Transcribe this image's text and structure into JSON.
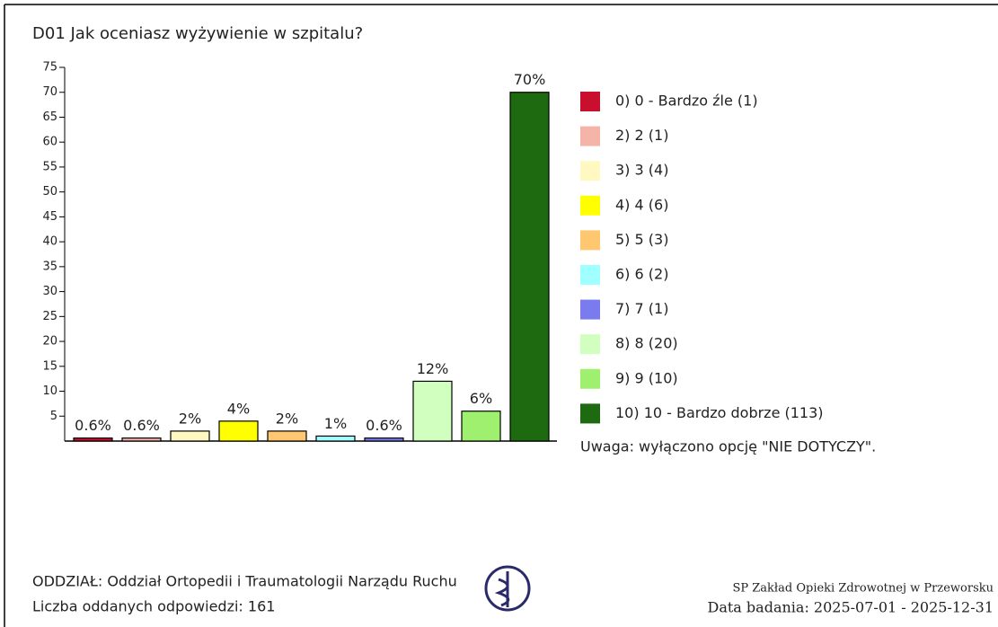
{
  "chart_data": {
    "type": "bar",
    "title": "D01 Jak oceniasz wyżywienie w szpitalu?",
    "categories": [
      "0) 0 - Bardzo źle (1)",
      "2) 2 (1)",
      "3) 3 (4)",
      "4) 4 (6)",
      "5) 5 (3)",
      "6) 6 (2)",
      "7) 7 (1)",
      "8) 8 (20)",
      "9) 9 (10)",
      "10) 10 - Bardzo dobrze (113)"
    ],
    "values": [
      0.6,
      0.6,
      2,
      4,
      2,
      1,
      0.6,
      12,
      6,
      70
    ],
    "value_labels": [
      "0.6%",
      "0.6%",
      "2%",
      "4%",
      "2%",
      "1%",
      "0.6%",
      "12%",
      "6%",
      "70%"
    ],
    "colors": [
      "#c8102e",
      "#f4b4a8",
      "#fff8c0",
      "#ffff00",
      "#ffc870",
      "#a0ffff",
      "#7b7bf0",
      "#d0ffc0",
      "#a0f070",
      "#1e6a10"
    ],
    "ylim": [
      0,
      75
    ],
    "yticks": [
      5,
      10,
      15,
      20,
      25,
      30,
      35,
      40,
      45,
      50,
      55,
      60,
      65,
      70,
      75
    ],
    "note": "Uwaga: wyłączono opcję \"NIE DOTYCZY\".",
    "footer_left": [
      "ODDZIAŁ: Oddział Ortopedii i Traumatologii Narządu Ruchu",
      "Liczba oddanych odpowiedzi: 161"
    ],
    "footer_right": [
      "SP Zakład Opieki Zdrowotnej w Przeworsku",
      "Data badania: 2025-07-01 - 2025-12-31"
    ]
  }
}
